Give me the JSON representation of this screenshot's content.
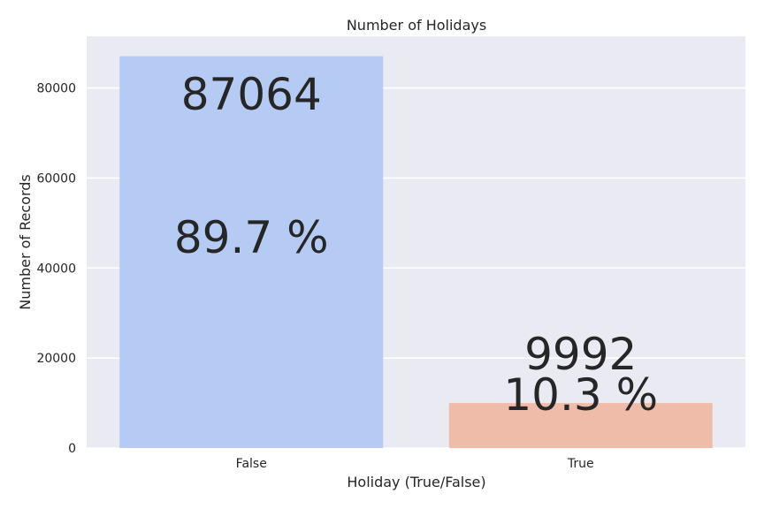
{
  "chart_data": {
    "type": "bar",
    "title": "Number of Holidays",
    "xlabel": "Holiday (True/False)",
    "ylabel": "Number of Records",
    "categories": [
      "False",
      "True"
    ],
    "values": [
      87064,
      9992
    ],
    "percent_labels": [
      "89.7 %",
      "10.3 %"
    ],
    "count_labels": [
      "87064",
      "9992"
    ],
    "ylim": [
      0,
      91500
    ],
    "yticks": [
      0,
      20000,
      40000,
      60000,
      80000
    ],
    "ytick_labels": [
      "0",
      "20000",
      "40000",
      "60000",
      "80000"
    ],
    "grid": true,
    "colors": {
      "background": "#eaeaf2",
      "grid": "#ffffff",
      "bars": [
        "#b5cbf4",
        "#eebca8"
      ],
      "text": "#262626"
    }
  }
}
